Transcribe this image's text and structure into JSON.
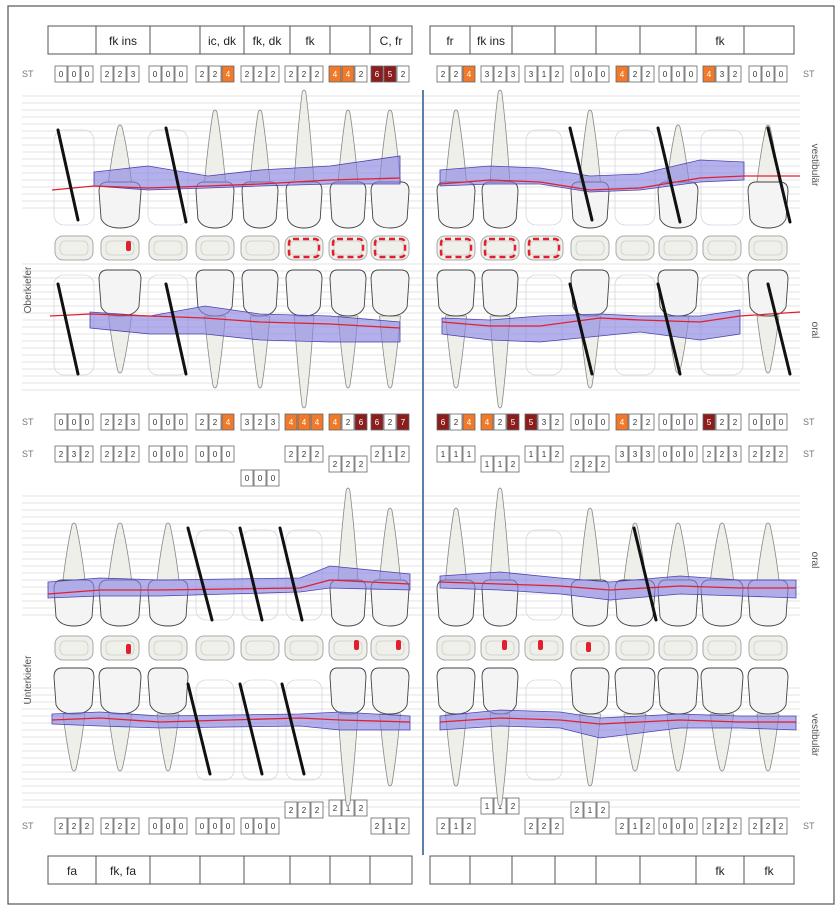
{
  "top_labels": [
    "",
    "fk ins",
    "",
    "ic, dk",
    "fk, dk",
    "fk",
    "",
    "C, fr",
    "fr",
    "fk ins",
    "",
    "",
    "",
    "",
    "fk",
    ""
  ],
  "bottom_labels": [
    "fa",
    "fk, fa",
    "",
    "",
    "",
    "",
    "",
    "",
    "",
    "",
    "",
    "",
    "",
    "",
    "fk",
    "fk"
  ],
  "side_labels": {
    "upper_jaw": "Oberkiefer",
    "lower_jaw": "Unterkiefer",
    "vestibular": "vestibulär",
    "oral": "oral",
    "st": "ST"
  },
  "upper_vestibular_st": [
    [
      "0",
      "0",
      "0"
    ],
    [
      "2",
      "2",
      "3"
    ],
    [
      "0",
      "0",
      "0"
    ],
    [
      "2",
      "2",
      "4"
    ],
    [
      "2",
      "2",
      "2"
    ],
    [
      "2",
      "2",
      "2"
    ],
    [
      "4",
      "4",
      "2"
    ],
    [
      "6",
      "5",
      "2"
    ],
    [
      "2",
      "2",
      "4"
    ],
    [
      "3",
      "2",
      "3"
    ],
    [
      "3",
      "1",
      "2"
    ],
    [
      "0",
      "0",
      "0"
    ],
    [
      "4",
      "2",
      "2"
    ],
    [
      "0",
      "0",
      "0"
    ],
    [
      "4",
      "3",
      "2"
    ],
    [
      "0",
      "0",
      "0"
    ]
  ],
  "upper_oral_st": [
    [
      "0",
      "0",
      "0"
    ],
    [
      "2",
      "2",
      "3"
    ],
    [
      "0",
      "0",
      "0"
    ],
    [
      "2",
      "2",
      "4"
    ],
    [
      "3",
      "2",
      "3"
    ],
    [
      "4",
      "4",
      "4"
    ],
    [
      "4",
      "2",
      "6"
    ],
    [
      "6",
      "2",
      "7"
    ],
    [
      "6",
      "2",
      "4"
    ],
    [
      "4",
      "2",
      "5"
    ],
    [
      "5",
      "3",
      "2"
    ],
    [
      "0",
      "0",
      "0"
    ],
    [
      "4",
      "2",
      "2"
    ],
    [
      "0",
      "0",
      "0"
    ],
    [
      "5",
      "2",
      "2"
    ],
    [
      "0",
      "0",
      "0"
    ]
  ],
  "lower_oral_st": [
    [
      "2",
      "3",
      "2"
    ],
    [
      "2",
      "2",
      "2"
    ],
    [
      "0",
      "0",
      "0"
    ],
    [
      "0",
      "0",
      "0"
    ],
    [
      "0",
      "0",
      "0"
    ],
    [
      "2",
      "2",
      "2"
    ],
    [
      "2",
      "2",
      "2"
    ],
    [
      "2",
      "1",
      "2"
    ],
    [
      "1",
      "1",
      "1"
    ],
    [
      "1",
      "1",
      "2"
    ],
    [
      "1",
      "1",
      "2"
    ],
    [
      "2",
      "2",
      "2"
    ],
    [
      "3",
      "3",
      "3"
    ],
    [
      "0",
      "0",
      "0"
    ],
    [
      "2",
      "2",
      "3"
    ],
    [
      "2",
      "2",
      "2"
    ]
  ],
  "lower_vestibular_st": [
    [
      "2",
      "2",
      "2"
    ],
    [
      "2",
      "2",
      "2"
    ],
    [
      "0",
      "0",
      "0"
    ],
    [
      "0",
      "0",
      "0"
    ],
    [
      "0",
      "0",
      "0"
    ],
    [
      "2",
      "2",
      "2"
    ],
    [
      "2",
      "1",
      "2"
    ],
    [
      "2",
      "1",
      "2"
    ],
    [
      "2",
      "1",
      "2"
    ],
    [
      "1",
      "1",
      "2"
    ],
    [
      "2",
      "2",
      "2"
    ],
    [
      "2",
      "1",
      "2"
    ],
    [
      "2",
      "1",
      "2"
    ],
    [
      "0",
      "0",
      "0"
    ],
    [
      "2",
      "2",
      "2"
    ],
    [
      "2",
      "2",
      "2"
    ]
  ],
  "colors": {
    "pocket_orange": "#f07a2a",
    "pocket_dark": "#8c1d1d",
    "pocket_mid": "#d9541c",
    "gum_fill": "#8a86e0",
    "gum_line": "#e02030",
    "midline": "#5b7fb0",
    "tooth_fill": "#ececec",
    "grid": "#c8c8c8"
  }
}
